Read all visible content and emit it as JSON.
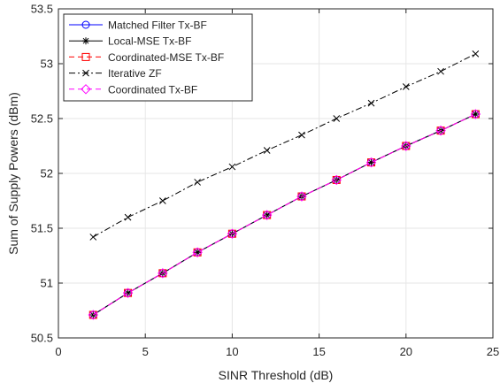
{
  "chart_data": {
    "type": "line",
    "title": "",
    "xlabel": "SINR Threshold (dB)",
    "ylabel": "Sum of Supply Powers (dBm)",
    "xlim": [
      0,
      25
    ],
    "ylim": [
      50.5,
      53.5
    ],
    "xticks": [
      0,
      5,
      10,
      15,
      20,
      25
    ],
    "yticks": [
      50.5,
      51,
      51.5,
      52,
      52.5,
      53,
      53.5
    ],
    "xtick_labels": [
      "0",
      "5",
      "10",
      "15",
      "20",
      "25"
    ],
    "ytick_labels": [
      "50.5",
      "51",
      "51.5",
      "52",
      "52.5",
      "53",
      "53.5"
    ],
    "grid": true,
    "legend_position": "top-left",
    "x": [
      2,
      4,
      6,
      8,
      10,
      12,
      14,
      16,
      18,
      20,
      22,
      24
    ],
    "series": [
      {
        "name": "Matched Filter Tx-BF",
        "color": "#0000ff",
        "line_style": "solid",
        "marker": "circle",
        "values": [
          50.71,
          50.91,
          51.09,
          51.28,
          51.45,
          51.62,
          51.79,
          51.94,
          52.1,
          52.25,
          52.39,
          52.54
        ]
      },
      {
        "name": "Local-MSE Tx-BF",
        "color": "#000000",
        "line_style": "solid",
        "marker": "asterisk",
        "values": [
          50.71,
          50.91,
          51.09,
          51.28,
          51.45,
          51.62,
          51.79,
          51.94,
          52.1,
          52.25,
          52.39,
          52.54
        ]
      },
      {
        "name": "Coordinated-MSE Tx-BF",
        "color": "#ff0000",
        "line_style": "dashed",
        "marker": "square",
        "values": [
          50.71,
          50.91,
          51.09,
          51.28,
          51.45,
          51.62,
          51.79,
          51.94,
          52.1,
          52.25,
          52.39,
          52.54
        ]
      },
      {
        "name": "Iterative ZF",
        "color": "#000000",
        "line_style": "dashdot",
        "marker": "x",
        "values": [
          51.42,
          51.6,
          51.75,
          51.92,
          52.06,
          52.21,
          52.35,
          52.5,
          52.64,
          52.79,
          52.93,
          53.09
        ]
      },
      {
        "name": "Coordinated Tx-BF",
        "color": "#ff00ff",
        "line_style": "dashed",
        "marker": "diamond",
        "values": [
          50.71,
          50.91,
          51.09,
          51.28,
          51.45,
          51.62,
          51.79,
          51.94,
          52.1,
          52.25,
          52.39,
          52.54
        ]
      }
    ]
  }
}
